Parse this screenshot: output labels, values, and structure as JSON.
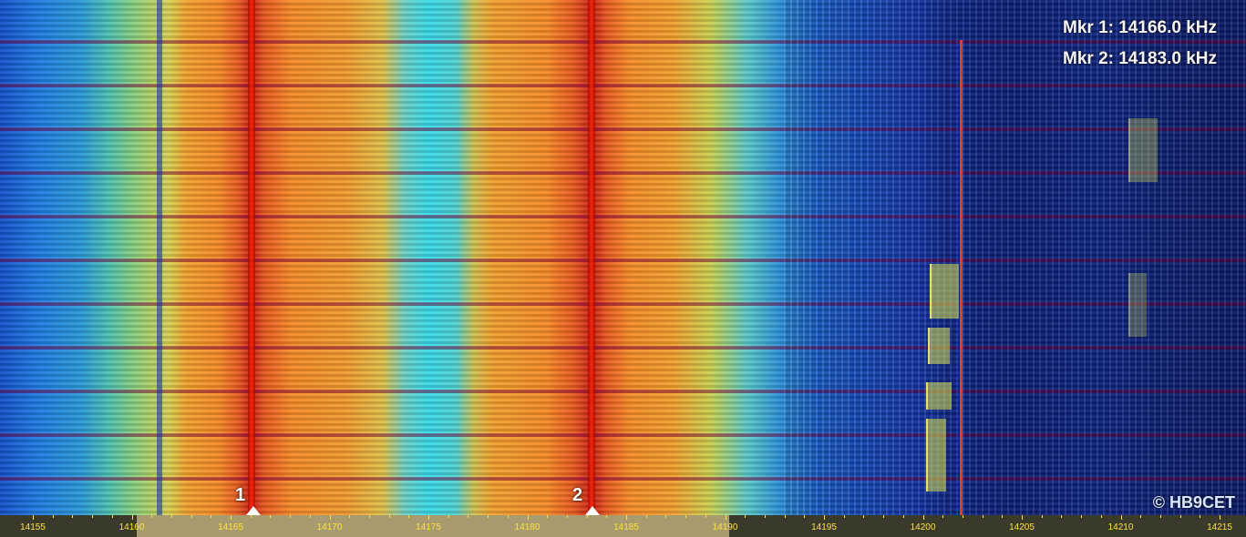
{
  "waterfall": {
    "markers": [
      {
        "id": "1",
        "label": "1",
        "freq_khz": 14166.0
      },
      {
        "id": "2",
        "label": "2",
        "freq_khz": 14183.0
      }
    ],
    "readouts": {
      "mkr1": "Mkr 1: 14166.0 kHz",
      "mkr2": "Mkr 2: 14183.0 kHz"
    },
    "copyright": "© HB9CET"
  },
  "axis": {
    "ticks": [
      "14155",
      "14160",
      "14165",
      "14170",
      "14175",
      "14180",
      "14185",
      "14190",
      "14195",
      "14200",
      "14205",
      "14210",
      "14215"
    ],
    "tick_color": "#ffe040"
  }
}
